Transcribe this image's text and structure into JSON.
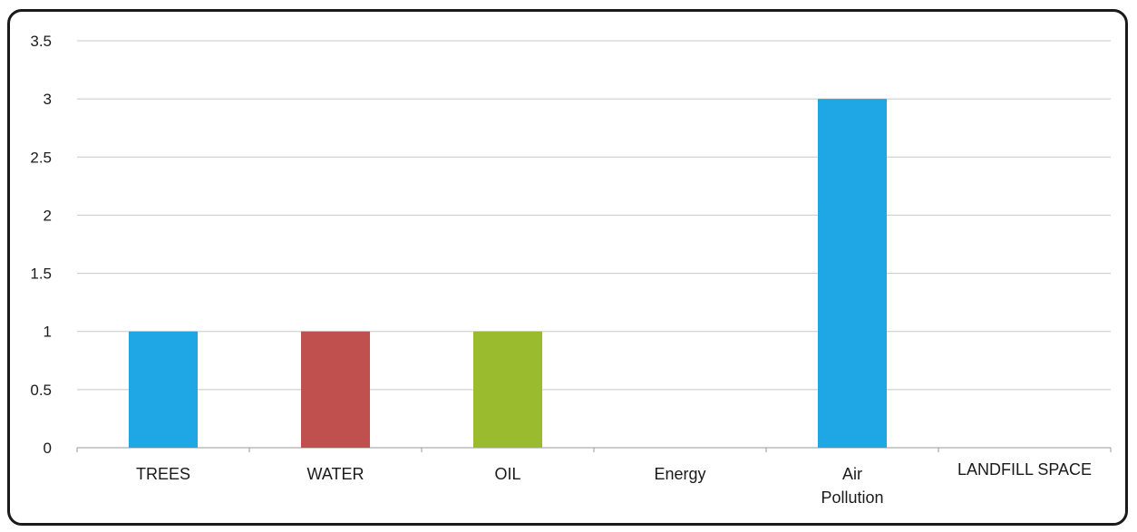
{
  "chart_data": {
    "type": "bar",
    "title": "",
    "xlabel": "",
    "ylabel": "",
    "categories": [
      "TREES",
      "WATER",
      "OIL",
      "Energy",
      "Air Pollution",
      "LANDFILL SPACE"
    ],
    "category_lines": [
      [
        "TREES"
      ],
      [
        "WATER"
      ],
      [
        "OIL"
      ],
      [
        "Energy"
      ],
      [
        "Air",
        "Pollution"
      ],
      [
        "LANDFILL SPACE"
      ]
    ],
    "values": [
      1,
      1,
      1,
      0,
      3,
      0
    ],
    "bar_colors": [
      "#1ea7e4",
      "#c0504d",
      "#9bbb2f",
      "#4f81bd",
      "#1ea7e4",
      "#4f81bd"
    ],
    "ylim": [
      0,
      3.5
    ],
    "yticks": [
      0,
      0.5,
      1,
      1.5,
      2,
      2.5,
      3,
      3.5
    ],
    "ytick_labels": [
      "0",
      "0.5",
      "1",
      "1.5",
      "2",
      "2.5",
      "3",
      "3.5"
    ],
    "grid": true,
    "legend": "none"
  }
}
